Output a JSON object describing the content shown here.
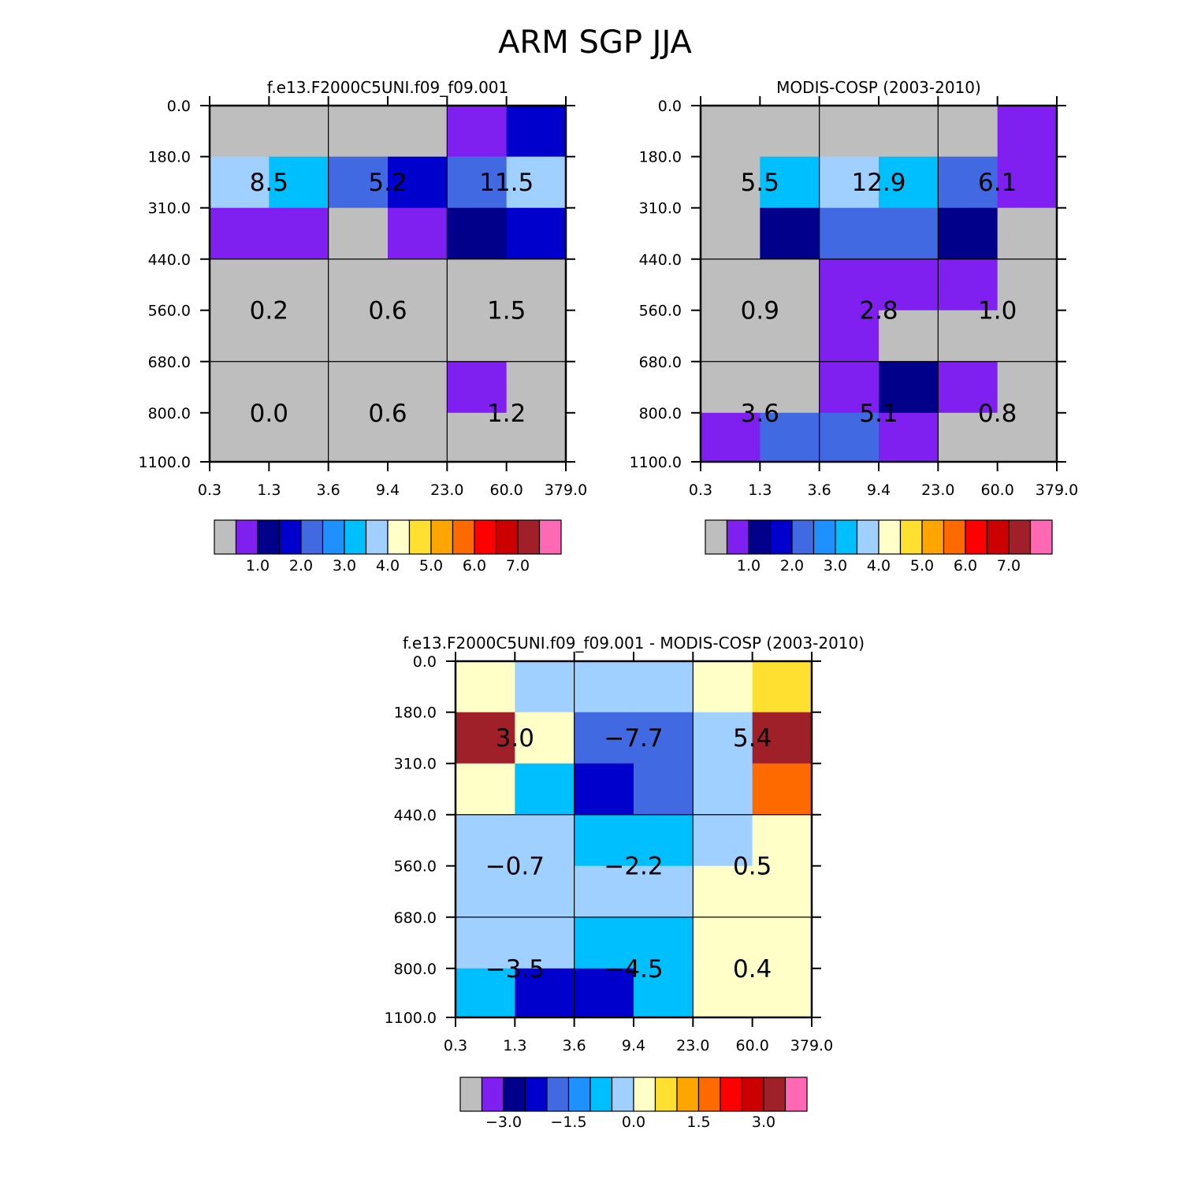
{
  "title": "ARM SGP JJA",
  "x_ticks": [
    "0.3",
    "1.3",
    "3.6",
    "9.4",
    "23.0",
    "60.0",
    "379.0"
  ],
  "y_ticks": [
    "0.0",
    "180.0",
    "310.0",
    "440.0",
    "560.0",
    "680.0",
    "800.0",
    "1100.0"
  ],
  "palette": [
    "#bebebe",
    "#8020f0",
    "#00008b",
    "#0000cd",
    "#4169e1",
    "#1e90ff",
    "#00bfff",
    "#a0d0ff",
    "#ffffc8",
    "#ffe030",
    "#ffa500",
    "#ff6a00",
    "#ff0000",
    "#cc0000",
    "#a0202a",
    "#ff69b4"
  ],
  "chart_data": [
    {
      "type": "heatmap",
      "title": "f.e13.F2000C5UNI.f09_f09.001",
      "xlabel": "",
      "ylabel": "",
      "x": [
        "0.3",
        "1.3",
        "3.6",
        "9.4",
        "23.0",
        "60.0",
        "379.0"
      ],
      "y": [
        "0.0",
        "180.0",
        "310.0",
        "440.0",
        "560.0",
        "680.0",
        "800.0",
        "1100.0"
      ],
      "cell_color_index": [
        [
          0,
          0,
          0,
          0,
          1,
          3
        ],
        [
          7,
          6,
          4,
          3,
          4,
          7
        ],
        [
          1,
          1,
          0,
          1,
          2,
          3
        ],
        [
          0,
          0,
          0,
          0,
          0,
          0
        ],
        [
          0,
          0,
          0,
          0,
          0,
          0
        ],
        [
          0,
          0,
          0,
          0,
          1,
          0
        ],
        [
          0,
          0,
          0,
          0,
          0,
          0
        ]
      ],
      "annotations": [
        {
          "text": "8.5",
          "row": 1,
          "col": 1
        },
        {
          "text": "5.2",
          "row": 1,
          "col": 3
        },
        {
          "text": "11.5",
          "row": 1,
          "col": 5
        },
        {
          "text": "0.2",
          "row": 4,
          "col": 1
        },
        {
          "text": "0.6",
          "row": 4,
          "col": 3
        },
        {
          "text": "1.5",
          "row": 4,
          "col": 5
        },
        {
          "text": "0.0",
          "row": 6,
          "col": 1
        },
        {
          "text": "0.6",
          "row": 6,
          "col": 3
        },
        {
          "text": "1.2",
          "row": 6,
          "col": 5
        }
      ],
      "colorbar": {
        "labels": [
          "1.0",
          "2.0",
          "3.0",
          "4.0",
          "5.0",
          "6.0",
          "7.0"
        ]
      }
    },
    {
      "type": "heatmap",
      "title": "MODIS-COSP (2003-2010)",
      "xlabel": "",
      "ylabel": "",
      "x": [
        "0.3",
        "1.3",
        "3.6",
        "9.4",
        "23.0",
        "60.0",
        "379.0"
      ],
      "y": [
        "0.0",
        "180.0",
        "310.0",
        "440.0",
        "560.0",
        "680.0",
        "800.0",
        "1100.0"
      ],
      "cell_color_index": [
        [
          0,
          0,
          0,
          0,
          0,
          1
        ],
        [
          0,
          6,
          7,
          6,
          4,
          1
        ],
        [
          0,
          2,
          4,
          4,
          2,
          0
        ],
        [
          0,
          0,
          1,
          1,
          1,
          0
        ],
        [
          0,
          0,
          1,
          0,
          0,
          0
        ],
        [
          0,
          0,
          1,
          2,
          1,
          0
        ],
        [
          1,
          4,
          4,
          1,
          0,
          0
        ]
      ],
      "annotations": [
        {
          "text": "5.5",
          "row": 1,
          "col": 1
        },
        {
          "text": "12.9",
          "row": 1,
          "col": 3
        },
        {
          "text": "6.1",
          "row": 1,
          "col": 5
        },
        {
          "text": "0.9",
          "row": 4,
          "col": 1
        },
        {
          "text": "2.8",
          "row": 4,
          "col": 3
        },
        {
          "text": "1.0",
          "row": 4,
          "col": 5
        },
        {
          "text": "3.6",
          "row": 6,
          "col": 1
        },
        {
          "text": "5.1",
          "row": 6,
          "col": 3
        },
        {
          "text": "0.8",
          "row": 6,
          "col": 5
        }
      ],
      "colorbar": {
        "labels": [
          "1.0",
          "2.0",
          "3.0",
          "4.0",
          "5.0",
          "6.0",
          "7.0"
        ]
      }
    },
    {
      "type": "heatmap",
      "title": "f.e13.F2000C5UNI.f09_f09.001 - MODIS-COSP (2003-2010)",
      "xlabel": "",
      "ylabel": "",
      "x": [
        "0.3",
        "1.3",
        "3.6",
        "9.4",
        "23.0",
        "60.0",
        "379.0"
      ],
      "y": [
        "0.0",
        "180.0",
        "310.0",
        "440.0",
        "560.0",
        "680.0",
        "800.0",
        "1100.0"
      ],
      "cell_color_index": [
        [
          8,
          7,
          7,
          7,
          8,
          9
        ],
        [
          14,
          8,
          4,
          4,
          7,
          14
        ],
        [
          8,
          6,
          3,
          4,
          7,
          11
        ],
        [
          7,
          7,
          6,
          6,
          7,
          8
        ],
        [
          7,
          7,
          7,
          7,
          8,
          8
        ],
        [
          7,
          7,
          6,
          6,
          8,
          8
        ],
        [
          6,
          3,
          3,
          6,
          8,
          8
        ]
      ],
      "annotations": [
        {
          "text": "3.0",
          "row": 1,
          "col": 1
        },
        {
          "text": "-7.7",
          "row": 1,
          "col": 3
        },
        {
          "text": "5.4",
          "row": 1,
          "col": 5
        },
        {
          "text": "-0.7",
          "row": 4,
          "col": 1
        },
        {
          "text": "-2.2",
          "row": 4,
          "col": 3
        },
        {
          "text": "0.5",
          "row": 4,
          "col": 5
        },
        {
          "text": "-3.5",
          "row": 6,
          "col": 1
        },
        {
          "text": "-4.5",
          "row": 6,
          "col": 3
        },
        {
          "text": "0.4",
          "row": 6,
          "col": 5
        }
      ],
      "colorbar": {
        "labels": [
          "-3.0",
          "-1.5",
          "0.0",
          "1.5",
          "3.0"
        ]
      }
    }
  ]
}
